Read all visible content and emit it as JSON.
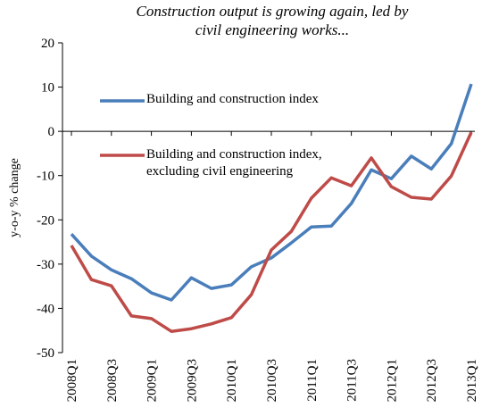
{
  "chart_data": {
    "type": "line",
    "title": "Construction output is growing again, led by civil engineering works...",
    "y_label": "y-o-y % change",
    "categories": [
      "2008Q1",
      null,
      "2008Q3",
      null,
      "2009Q1",
      null,
      "2009Q3",
      null,
      "2010Q1",
      null,
      "2010Q3",
      null,
      "2011Q1",
      null,
      "2011Q3",
      null,
      "2012Q1",
      null,
      "2012Q3",
      null,
      "2013Q1"
    ],
    "series": [
      {
        "name": "Building and construction index",
        "color": "#4a7ebb",
        "values": [
          -23.2,
          -28.2,
          -31.3,
          -33.3,
          -36.5,
          -38.1,
          -33.1,
          -35.5,
          -34.7,
          -30.6,
          -28.6,
          -25.2,
          -21.6,
          -21.4,
          -16.3,
          -8.7,
          -10.7,
          -5.6,
          -8.5,
          -2.8,
          10.7
        ]
      },
      {
        "name": "Building and construction index, excluding civil engineering",
        "color": "#be4b48",
        "values": [
          -25.8,
          -33.5,
          -34.9,
          -41.7,
          -42.3,
          -45.2,
          -44.6,
          -43.5,
          -42.1,
          -36.9,
          -26.8,
          -22.6,
          -15.1,
          -10.5,
          -12.3,
          -6.0,
          -12.5,
          -14.9,
          -15.3,
          -10.1,
          -0.2
        ]
      }
    ],
    "ylim": [
      -50,
      20
    ],
    "yticks": [
      -50,
      -40,
      -30,
      -20,
      -10,
      0,
      10,
      20
    ]
  }
}
